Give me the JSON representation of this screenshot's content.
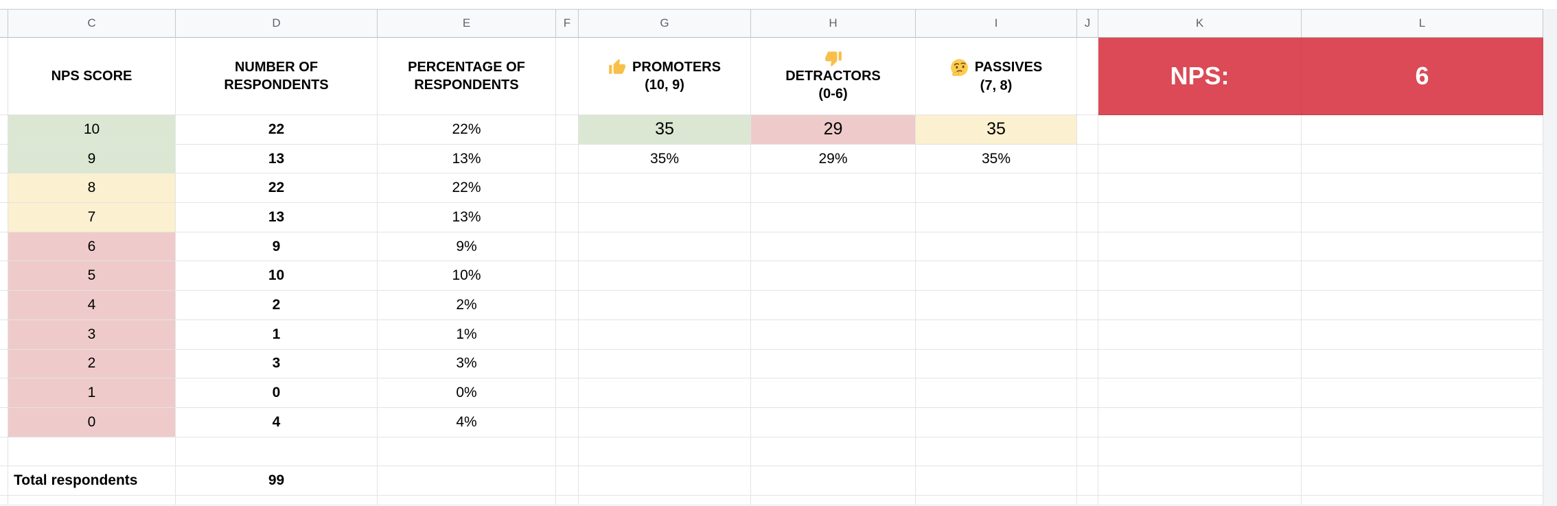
{
  "sheet": {
    "column_letters": [
      "",
      "C",
      "D",
      "E",
      "F",
      "G",
      "H",
      "I",
      "J",
      "K",
      "L"
    ],
    "hidden_columns_indicator": "◀",
    "headers": {
      "score": "NPS SCORE",
      "count": "NUMBER OF\nRESPONDENTS",
      "pct": "PERCENTAGE OF\nRESPONDENTS",
      "promoters": {
        "icon": "thumbs-up-emoji",
        "title": "PROMOTERS",
        "range": "(10, 9)"
      },
      "detractors": {
        "icon": "thumbs-down-emoji",
        "title": "DETRACTORS",
        "range": "(0-6)"
      },
      "passives": {
        "icon": "thinking-face-emoji",
        "title": "PASSIVES",
        "range": "(7, 8)"
      }
    },
    "nps": {
      "label": "NPS:",
      "value": "6"
    },
    "score_rows": [
      {
        "score": "10",
        "count": "22",
        "pct": "22%",
        "tone": "green"
      },
      {
        "score": "9",
        "count": "13",
        "pct": "13%",
        "tone": "green"
      },
      {
        "score": "8",
        "count": "22",
        "pct": "22%",
        "tone": "yellow"
      },
      {
        "score": "7",
        "count": "13",
        "pct": "13%",
        "tone": "yellow"
      },
      {
        "score": "6",
        "count": "9",
        "pct": "9%",
        "tone": "red"
      },
      {
        "score": "5",
        "count": "10",
        "pct": "10%",
        "tone": "red"
      },
      {
        "score": "4",
        "count": "2",
        "pct": "2%",
        "tone": "red"
      },
      {
        "score": "3",
        "count": "1",
        "pct": "1%",
        "tone": "red"
      },
      {
        "score": "2",
        "count": "3",
        "pct": "3%",
        "tone": "red"
      },
      {
        "score": "1",
        "count": "0",
        "pct": "0%",
        "tone": "red"
      },
      {
        "score": "0",
        "count": "4",
        "pct": "4%",
        "tone": "red"
      }
    ],
    "group_counts": {
      "promoters": "35",
      "detractors": "29",
      "passives": "35"
    },
    "group_pcts": {
      "promoters": "35%",
      "detractors": "29%",
      "passives": "35%"
    },
    "total": {
      "label": "Total respondents",
      "value": "99"
    },
    "colors": {
      "promoter_fill": "#dbe7d2",
      "passive_fill": "#fbf0cf",
      "detractor_fill": "#eecbca",
      "nps_banner": "#db4a56"
    }
  }
}
